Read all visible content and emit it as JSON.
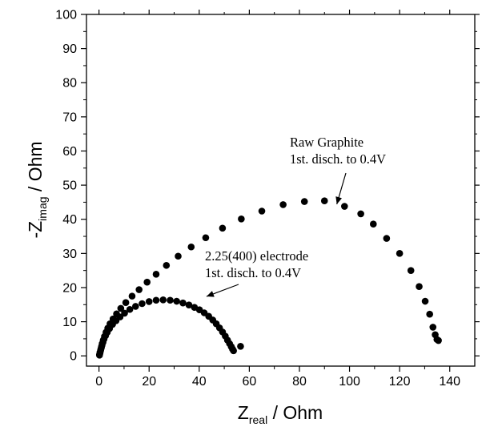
{
  "chart_data": {
    "type": "scatter",
    "xlabel": {
      "main": "Z",
      "sub": "real",
      "rest": " / Ohm"
    },
    "ylabel": {
      "main": "-Z",
      "sub": "imag",
      "rest": " / Ohm"
    },
    "xlim": [
      -5,
      150
    ],
    "ylim": [
      -3,
      100
    ],
    "xticks": [
      0,
      20,
      40,
      60,
      80,
      100,
      120,
      140
    ],
    "yticks": [
      0,
      10,
      20,
      30,
      40,
      50,
      60,
      70,
      80,
      90,
      100
    ],
    "grid": false,
    "marker_color": "#000000",
    "series": [
      {
        "points": [
          [
            0.2,
            0.3
          ],
          [
            0.4,
            1.0
          ],
          [
            0.7,
            1.8
          ],
          [
            1.0,
            2.7
          ],
          [
            1.3,
            3.6
          ],
          [
            1.7,
            4.6
          ],
          [
            2.2,
            5.7
          ],
          [
            2.8,
            6.9
          ],
          [
            3.5,
            8.1
          ],
          [
            4.4,
            9.4
          ],
          [
            5.6,
            10.8
          ],
          [
            7.0,
            12.3
          ],
          [
            8.7,
            13.9
          ],
          [
            10.7,
            15.6
          ],
          [
            13.2,
            17.5
          ],
          [
            16.0,
            19.4
          ],
          [
            19.2,
            21.6
          ],
          [
            22.8,
            23.9
          ],
          [
            26.9,
            26.5
          ],
          [
            31.6,
            29.2
          ],
          [
            36.8,
            31.9
          ],
          [
            42.6,
            34.6
          ],
          [
            49.3,
            37.4
          ],
          [
            56.8,
            40.1
          ],
          [
            65.0,
            42.4
          ],
          [
            73.5,
            44.3
          ],
          [
            82.0,
            45.2
          ],
          [
            90.0,
            45.4
          ],
          [
            98.0,
            43.8
          ],
          [
            104.5,
            41.6
          ],
          [
            109.5,
            38.6
          ],
          [
            114.8,
            34.4
          ],
          [
            120.0,
            30.0
          ],
          [
            124.5,
            25.0
          ],
          [
            127.8,
            20.3
          ],
          [
            130.2,
            16.0
          ],
          [
            132.0,
            12.2
          ],
          [
            133.3,
            8.4
          ],
          [
            134.2,
            6.2
          ],
          [
            134.9,
            4.8
          ],
          [
            135.5,
            4.5
          ]
        ]
      },
      {
        "points": [
          [
            0.2,
            0.2
          ],
          [
            0.4,
            0.8
          ],
          [
            0.6,
            1.5
          ],
          [
            0.9,
            2.3
          ],
          [
            1.2,
            3.1
          ],
          [
            1.6,
            4.0
          ],
          [
            2.0,
            4.9
          ],
          [
            2.6,
            5.9
          ],
          [
            3.3,
            6.9
          ],
          [
            4.2,
            8.0
          ],
          [
            5.4,
            9.2
          ],
          [
            6.8,
            10.3
          ],
          [
            8.4,
            11.4
          ],
          [
            10.2,
            12.5
          ],
          [
            12.3,
            13.6
          ],
          [
            14.6,
            14.5
          ],
          [
            17.2,
            15.3
          ],
          [
            20.0,
            15.9
          ],
          [
            22.8,
            16.3
          ],
          [
            25.6,
            16.4
          ],
          [
            28.4,
            16.3
          ],
          [
            31.0,
            16.0
          ],
          [
            33.5,
            15.5
          ],
          [
            35.9,
            14.9
          ],
          [
            38.1,
            14.2
          ],
          [
            40.1,
            13.5
          ],
          [
            42.0,
            12.6
          ],
          [
            43.8,
            11.6
          ],
          [
            45.4,
            10.5
          ],
          [
            46.8,
            9.4
          ],
          [
            48.1,
            8.2
          ],
          [
            49.3,
            7.0
          ],
          [
            50.4,
            5.8
          ],
          [
            51.3,
            4.6
          ],
          [
            52.1,
            3.6
          ],
          [
            52.8,
            2.7
          ],
          [
            53.3,
            2.0
          ],
          [
            53.7,
            1.5
          ],
          [
            56.5,
            2.8
          ]
        ]
      }
    ],
    "annotations": [
      {
        "lines": [
          "Raw Graphite",
          "1st. disch. to 0.4V"
        ],
        "arrow_to": [
          93,
          43
        ]
      },
      {
        "lines": [
          "2.25(400) electrode",
          "1st. disch. to 0.4V"
        ],
        "arrow_to": [
          41,
          16
        ]
      }
    ]
  }
}
